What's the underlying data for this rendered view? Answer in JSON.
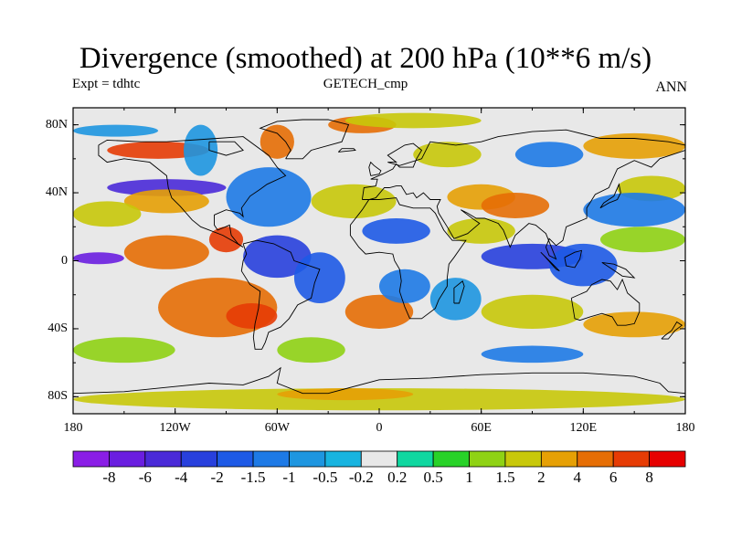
{
  "title": "Divergence (smoothed) at 200 hPa (10**6 m/s)",
  "subtitle_left": "Expt = tdhtc",
  "subtitle_center": "GETECH_cmp",
  "subtitle_right": "ANN",
  "map": {
    "projection": "cylindrical-equidistant",
    "lon_range": [
      -180,
      180
    ],
    "lat_range": [
      -90,
      90
    ],
    "y_ticks": [
      "80N",
      "40N",
      "0",
      "40S",
      "80S"
    ],
    "x_ticks": [
      "180",
      "120W",
      "60W",
      "0",
      "60E",
      "120E",
      "180"
    ],
    "colors": {
      "frame": "#000000",
      "coast": "#000000",
      "background": "#ffffff"
    }
  },
  "colorbar": {
    "levels": [
      "-8",
      "-6",
      "-4",
      "-2",
      "-1.5",
      "-1",
      "-0.5",
      "-0.2",
      "0.2",
      "0.5",
      "1",
      "1.5",
      "2",
      "4",
      "6",
      "8"
    ],
    "colors": [
      "#8a1ee6",
      "#6a1ee0",
      "#4a2ad8",
      "#2840dd",
      "#1e5ae6",
      "#1e7ae6",
      "#1e96e0",
      "#18b4e0",
      "#e8e8e8",
      "#10d7a0",
      "#28d228",
      "#8fd214",
      "#c8c80a",
      "#e6a005",
      "#e66e05",
      "#e63c05",
      "#e60000"
    ]
  }
}
